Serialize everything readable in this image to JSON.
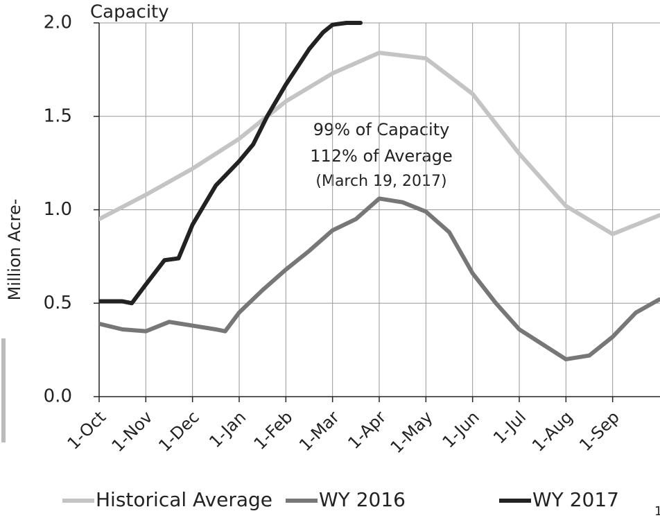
{
  "chart_data": {
    "type": "line",
    "title": "Capacity",
    "y_label": "Million Acre-",
    "annotations": [
      "99% of Capacity",
      "112% of Average",
      "(March 19, 2017)"
    ],
    "xlim": [
      0,
      12
    ],
    "xticks": [
      {
        "value": 0,
        "label": "1-Oct"
      },
      {
        "value": 1,
        "label": "1-Nov"
      },
      {
        "value": 2,
        "label": "1-Dec"
      },
      {
        "value": 3,
        "label": "1-Jan"
      },
      {
        "value": 4,
        "label": "1-Feb"
      },
      {
        "value": 5,
        "label": "1-Mar"
      },
      {
        "value": 6,
        "label": "1-Apr"
      },
      {
        "value": 7,
        "label": "1-May"
      },
      {
        "value": 8,
        "label": "1-Jun"
      },
      {
        "value": 9,
        "label": "1-Jul"
      },
      {
        "value": 10,
        "label": "1-Aug"
      },
      {
        "value": 11,
        "label": "1-Sep"
      }
    ],
    "ylim": [
      0,
      2
    ],
    "yticks": [
      {
        "value": 0,
        "label": "0.0"
      },
      0.5,
      {
        "value": 1,
        "label": "1.0"
      },
      1.5,
      {
        "value": 2,
        "label": "2.0"
      }
    ],
    "grid": true,
    "series": [
      {
        "name": "Historical Average",
        "color": "#c4c4c4",
        "x": [
          0,
          1,
          2,
          3,
          4,
          5,
          6,
          7,
          8,
          9,
          10,
          11,
          12
        ],
        "values": [
          0.95,
          1.08,
          1.22,
          1.38,
          1.58,
          1.73,
          1.84,
          1.81,
          1.62,
          1.3,
          1.02,
          0.87,
          0.97
        ]
      },
      {
        "name": "WY 2016",
        "color": "#777777",
        "x": [
          0,
          0.5,
          1,
          1.5,
          2,
          2.5,
          2.7,
          3,
          3.5,
          4,
          4.5,
          5,
          5.5,
          6,
          6.5,
          7,
          7.5,
          8,
          8.5,
          9,
          9.5,
          10,
          10.5,
          11,
          11.5,
          12
        ],
        "values": [
          0.39,
          0.36,
          0.35,
          0.4,
          0.38,
          0.36,
          0.35,
          0.45,
          0.57,
          0.68,
          0.78,
          0.89,
          0.95,
          1.06,
          1.04,
          0.99,
          0.88,
          0.66,
          0.5,
          0.36,
          0.28,
          0.2,
          0.22,
          0.32,
          0.45,
          0.52
        ]
      },
      {
        "name": "WY 2017",
        "color": "#222222",
        "x": [
          0,
          0.5,
          0.7,
          1,
          1.4,
          1.7,
          2,
          2.5,
          3,
          3.3,
          3.6,
          4,
          4.5,
          4.8,
          5,
          5.3,
          5.6
        ],
        "values": [
          0.51,
          0.51,
          0.5,
          0.6,
          0.73,
          0.74,
          0.92,
          1.13,
          1.26,
          1.35,
          1.5,
          1.67,
          1.86,
          1.95,
          1.99,
          2.0,
          2.0
        ]
      }
    ]
  },
  "page_number": "1"
}
